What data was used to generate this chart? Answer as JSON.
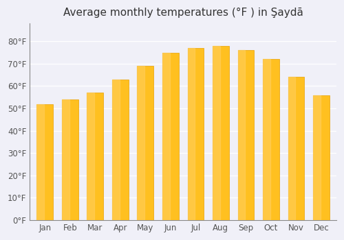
{
  "title": "Average monthly temperatures (°F ) in Şaydā",
  "months": [
    "Jan",
    "Feb",
    "Mar",
    "Apr",
    "May",
    "Jun",
    "Jul",
    "Aug",
    "Sep",
    "Oct",
    "Nov",
    "Dec"
  ],
  "values": [
    52,
    54,
    57,
    63,
    69,
    75,
    77,
    78,
    76,
    72,
    64,
    56
  ],
  "ylim": [
    0,
    88
  ],
  "yticks": [
    0,
    10,
    20,
    30,
    40,
    50,
    60,
    70,
    80
  ],
  "ytick_labels": [
    "0°F",
    "10°F",
    "20°F",
    "30°F",
    "40°F",
    "50°F",
    "60°F",
    "70°F",
    "80°F"
  ],
  "bar_color_top": "#FFC020",
  "bar_color_bottom": "#FFA000",
  "background_color": "#f0f0f8",
  "plot_bg_color": "#f0f0f8",
  "grid_color": "#ffffff",
  "title_fontsize": 11,
  "tick_fontsize": 8.5
}
